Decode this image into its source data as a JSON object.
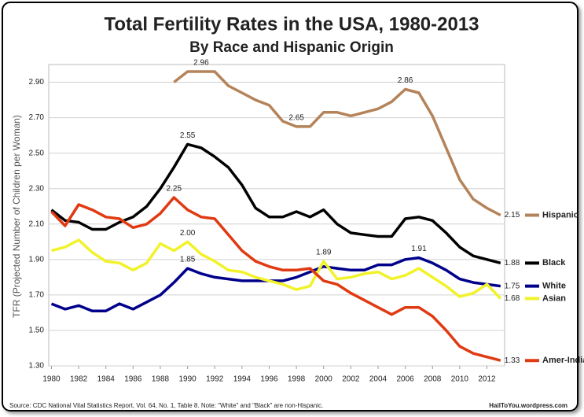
{
  "chart_data": {
    "type": "line",
    "title": "Total Fertility Rates in the USA, 1980-2013",
    "subtitle": "By Race and Hispanic Origin",
    "y_label": "TFR (Projected Number of Children per Woman)",
    "source": "Source: CDC National Vital Statistics Report, Vol. 64, No. 1, Table 8.   Note: \"White\" and \"Black\" are non-Hispanic.",
    "credit": "HailToYou.wordpress.com",
    "x": [
      1980,
      1981,
      1982,
      1983,
      1984,
      1985,
      1986,
      1987,
      1988,
      1989,
      1990,
      1991,
      1992,
      1993,
      1994,
      1995,
      1996,
      1997,
      1998,
      1999,
      2000,
      2001,
      2002,
      2003,
      2004,
      2005,
      2006,
      2007,
      2008,
      2009,
      2010,
      2011,
      2012,
      2013
    ],
    "xlim": [
      1979.8,
      2013.3
    ],
    "xticks": [
      1980,
      1982,
      1984,
      1986,
      1988,
      1990,
      1992,
      1994,
      1996,
      1998,
      2000,
      2002,
      2004,
      2006,
      2008,
      2010,
      2012
    ],
    "ylim": [
      1.3,
      3.0
    ],
    "yticks": [
      {
        "value": 1.3,
        "label": "1.30"
      },
      {
        "value": 1.5,
        "label": "1.50"
      },
      {
        "value": 1.7,
        "label": "1.70"
      },
      {
        "value": 1.9,
        "label": "1.90"
      },
      {
        "value": 2.1,
        "label": "2.10"
      },
      {
        "value": 2.3,
        "label": "2.30"
      },
      {
        "value": 2.5,
        "label": "2.50"
      },
      {
        "value": 2.7,
        "label": "2.70"
      },
      {
        "value": 2.9,
        "label": "2.90"
      }
    ],
    "grid": true,
    "legend": "right",
    "series": [
      {
        "name": "Hispanic",
        "color": "#b5835a",
        "values": [
          null,
          null,
          null,
          null,
          null,
          null,
          null,
          null,
          null,
          2.9,
          2.96,
          2.96,
          2.96,
          2.88,
          2.84,
          2.8,
          2.77,
          2.68,
          2.65,
          2.65,
          2.73,
          2.73,
          2.71,
          2.73,
          2.75,
          2.79,
          2.86,
          2.84,
          2.71,
          2.53,
          2.35,
          2.24,
          2.19,
          2.15
        ],
        "value_labels": [
          null,
          null,
          null,
          null,
          null,
          null,
          null,
          null,
          null,
          null,
          null,
          "2.96",
          null,
          null,
          null,
          null,
          null,
          null,
          "2.65",
          null,
          null,
          null,
          null,
          null,
          null,
          null,
          "2.86",
          null,
          null,
          null,
          null,
          null,
          null,
          "2.15"
        ]
      },
      {
        "name": "Black",
        "color": "#000000",
        "values": [
          2.18,
          2.12,
          2.11,
          2.07,
          2.07,
          2.11,
          2.14,
          2.2,
          2.3,
          2.42,
          2.55,
          2.53,
          2.48,
          2.42,
          2.32,
          2.19,
          2.14,
          2.14,
          2.17,
          2.14,
          2.18,
          2.1,
          2.05,
          2.04,
          2.03,
          2.03,
          2.13,
          2.14,
          2.12,
          2.05,
          1.97,
          1.92,
          1.9,
          1.88
        ],
        "value_labels": [
          null,
          null,
          null,
          null,
          null,
          null,
          null,
          null,
          null,
          null,
          "2.55",
          null,
          null,
          null,
          null,
          null,
          null,
          null,
          null,
          null,
          null,
          null,
          null,
          null,
          null,
          null,
          null,
          null,
          null,
          null,
          null,
          null,
          null,
          "1.88"
        ]
      },
      {
        "name": "White",
        "color": "#00008b",
        "values": [
          1.65,
          1.62,
          1.64,
          1.61,
          1.61,
          1.65,
          1.62,
          1.66,
          1.7,
          1.77,
          1.85,
          1.82,
          1.8,
          1.79,
          1.78,
          1.78,
          1.78,
          1.78,
          1.8,
          1.83,
          1.86,
          1.85,
          1.84,
          1.84,
          1.87,
          1.87,
          1.9,
          1.91,
          1.88,
          1.84,
          1.79,
          1.77,
          1.76,
          1.75
        ],
        "value_labels": [
          null,
          null,
          null,
          null,
          null,
          null,
          null,
          null,
          null,
          null,
          "1.85",
          null,
          null,
          null,
          null,
          null,
          null,
          null,
          null,
          null,
          null,
          null,
          null,
          null,
          null,
          null,
          null,
          "1.91",
          null,
          null,
          null,
          null,
          null,
          "1.75"
        ]
      },
      {
        "name": "Asian",
        "color": "#f2f22a",
        "values": [
          1.95,
          1.97,
          2.01,
          1.94,
          1.89,
          1.88,
          1.84,
          1.88,
          1.99,
          1.95,
          2.0,
          1.93,
          1.89,
          1.84,
          1.83,
          1.8,
          1.78,
          1.76,
          1.73,
          1.75,
          1.89,
          1.79,
          1.8,
          1.82,
          1.83,
          1.79,
          1.81,
          1.85,
          1.8,
          1.75,
          1.69,
          1.71,
          1.76,
          1.68
        ],
        "value_labels": [
          null,
          null,
          null,
          null,
          null,
          null,
          null,
          null,
          null,
          null,
          "2.00",
          null,
          null,
          null,
          null,
          null,
          null,
          null,
          null,
          null,
          "1.89",
          null,
          null,
          null,
          null,
          null,
          null,
          null,
          null,
          null,
          null,
          null,
          null,
          "1.68"
        ]
      },
      {
        "name": "Amer-Indian",
        "color": "#e03a12",
        "values": [
          2.17,
          2.09,
          2.21,
          2.18,
          2.14,
          2.13,
          2.08,
          2.1,
          2.16,
          2.25,
          2.18,
          2.14,
          2.13,
          2.04,
          1.95,
          1.89,
          1.86,
          1.84,
          1.84,
          1.85,
          1.78,
          1.76,
          1.71,
          1.67,
          1.63,
          1.59,
          1.63,
          1.63,
          1.58,
          1.5,
          1.41,
          1.37,
          1.35,
          1.33
        ],
        "value_labels": [
          null,
          null,
          null,
          null,
          null,
          null,
          null,
          null,
          null,
          "2.25",
          null,
          null,
          null,
          null,
          null,
          null,
          null,
          null,
          null,
          null,
          null,
          null,
          null,
          null,
          null,
          null,
          null,
          null,
          null,
          null,
          null,
          null,
          null,
          "1.33"
        ]
      }
    ]
  }
}
